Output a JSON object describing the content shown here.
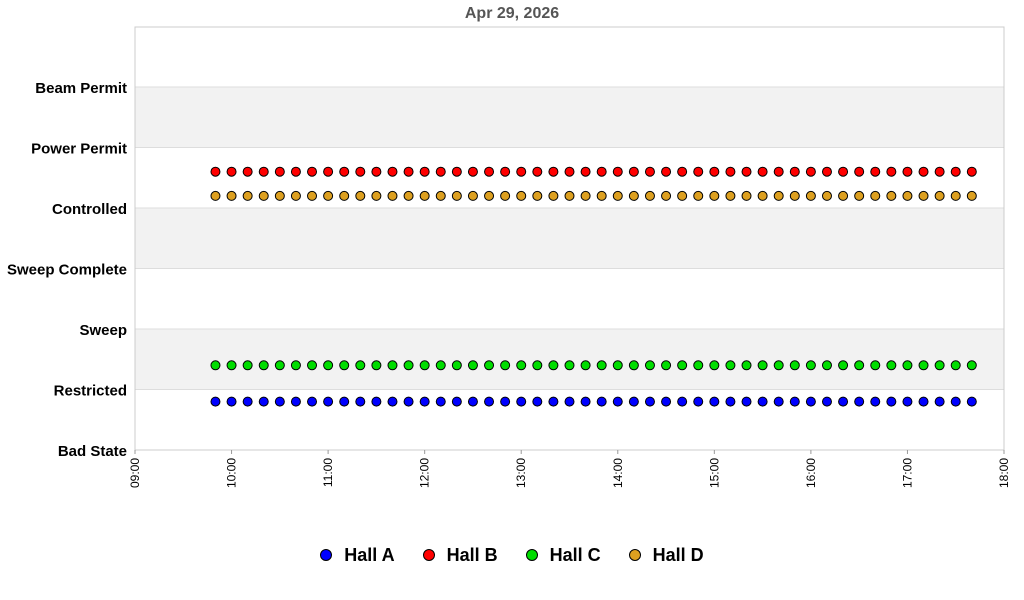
{
  "chart_data": {
    "type": "scatter",
    "title": "Apr 29, 2026",
    "xlabel": "",
    "ylabel": "",
    "y_categories": [
      "Bad State",
      "Restricted",
      "Sweep",
      "Sweep Complete",
      "Controlled",
      "Power Permit",
      "Beam Permit"
    ],
    "x_ticks": [
      "09:00",
      "10:00",
      "11:00",
      "12:00",
      "13:00",
      "14:00",
      "15:00",
      "16:00",
      "17:00",
      "18:00"
    ],
    "xlim": [
      "09:00",
      "18:00"
    ],
    "x_sample": {
      "start": "09:50",
      "end": "17:40",
      "interval_minutes": 10
    },
    "legend_position": "bottom",
    "series": [
      {
        "name": "Hall A",
        "color": "#0000ff",
        "state": "Restricted",
        "level": 0.8
      },
      {
        "name": "Hall B",
        "color": "#ff0000",
        "state": "Controlled",
        "level": 4.6
      },
      {
        "name": "Hall C",
        "color": "#00dd00",
        "state": "Restricted",
        "level": 1.4
      },
      {
        "name": "Hall D",
        "color": "#dda020",
        "state": "Controlled",
        "level": 4.2
      }
    ]
  }
}
